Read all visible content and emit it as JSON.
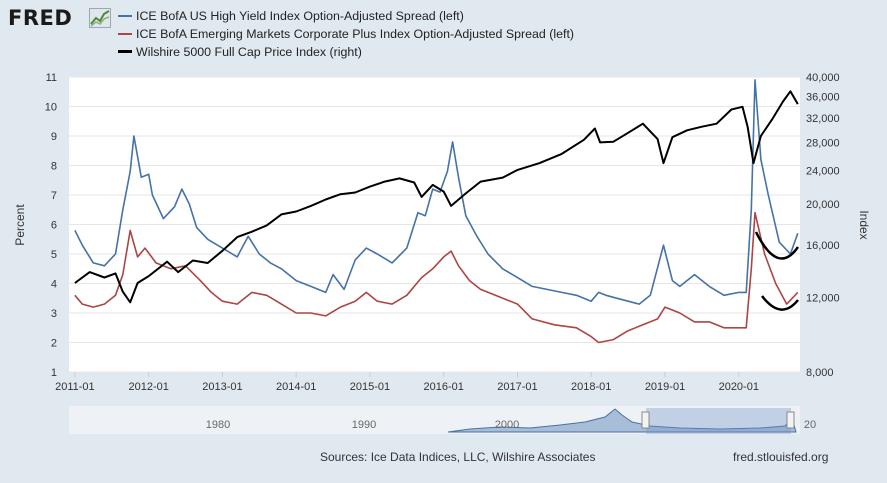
{
  "header": {
    "logo_text": "FRED",
    "logo_icon": "trend-chart-icon"
  },
  "legend": [
    {
      "label": "ICE BofA US High Yield Index Option-Adjusted Spread (left)",
      "color": "#4572a7"
    },
    {
      "label": "ICE BofA Emerging Markets Corporate Plus Index Option-Adjusted Spread (left)",
      "color": "#aa4643"
    },
    {
      "label": "Wilshire 5000 Full Cap Price Index (right)",
      "color": "#000000"
    }
  ],
  "footer": {
    "source": "Sources: Ice Data Indices, LLC, Wilshire Associates",
    "website": "fred.stlouisfed.org"
  },
  "chart_data": {
    "type": "line",
    "xlim": [
      2010.92,
      2020.83
    ],
    "x_ticks": [
      {
        "value": 2011.0,
        "label": "2011-01"
      },
      {
        "value": 2012.0,
        "label": "2012-01"
      },
      {
        "value": 2013.0,
        "label": "2013-01"
      },
      {
        "value": 2014.0,
        "label": "2014-01"
      },
      {
        "value": 2015.0,
        "label": "2015-01"
      },
      {
        "value": 2016.0,
        "label": "2016-01"
      },
      {
        "value": 2017.0,
        "label": "2017-01"
      },
      {
        "value": 2018.0,
        "label": "2018-01"
      },
      {
        "value": 2019.0,
        "label": "2019-01"
      },
      {
        "value": 2020.0,
        "label": "2020-01"
      }
    ],
    "left_axis": {
      "label": "Percent",
      "ylim": [
        1,
        11
      ],
      "ticks": [
        "1",
        "2",
        "3",
        "4",
        "5",
        "6",
        "7",
        "8",
        "9",
        "10",
        "11"
      ]
    },
    "right_axis": {
      "label": "Index",
      "scale": "log",
      "ylim": [
        8000,
        40000
      ],
      "ticks": [
        {
          "value": 8000,
          "label": "8,000"
        },
        {
          "value": 12000,
          "label": "12,000"
        },
        {
          "value": 16000,
          "label": "16,000"
        },
        {
          "value": 20000,
          "label": "20,000"
        },
        {
          "value": 24000,
          "label": "24,000"
        },
        {
          "value": 28000,
          "label": "28,000"
        },
        {
          "value": 32000,
          "label": "32,000"
        },
        {
          "value": 36000,
          "label": "36,000"
        },
        {
          "value": 40000,
          "label": "40,000"
        }
      ]
    },
    "series": [
      {
        "name": "ICE BofA US High Yield Index Option-Adjusted Spread",
        "axis": "left",
        "color": "#4572a7",
        "x": [
          2011.0,
          2011.1,
          2011.25,
          2011.4,
          2011.55,
          2011.65,
          2011.75,
          2011.8,
          2011.9,
          2012.0,
          2012.05,
          2012.2,
          2012.35,
          2012.45,
          2012.55,
          2012.65,
          2012.8,
          2013.0,
          2013.2,
          2013.35,
          2013.5,
          2013.65,
          2013.8,
          2014.0,
          2014.2,
          2014.4,
          2014.5,
          2014.65,
          2014.8,
          2014.95,
          2015.1,
          2015.3,
          2015.5,
          2015.65,
          2015.75,
          2015.85,
          2015.95,
          2016.05,
          2016.12,
          2016.2,
          2016.3,
          2016.45,
          2016.6,
          2016.8,
          2017.0,
          2017.2,
          2017.4,
          2017.6,
          2017.8,
          2018.0,
          2018.1,
          2018.2,
          2018.35,
          2018.5,
          2018.65,
          2018.8,
          2018.98,
          2019.1,
          2019.2,
          2019.4,
          2019.6,
          2019.8,
          2020.0,
          2020.1,
          2020.17,
          2020.22,
          2020.3,
          2020.4,
          2020.55,
          2020.7,
          2020.8
        ],
        "y": [
          5.8,
          5.3,
          4.7,
          4.6,
          5.0,
          6.5,
          7.8,
          9.0,
          7.6,
          7.7,
          7.0,
          6.2,
          6.6,
          7.2,
          6.7,
          5.9,
          5.5,
          5.2,
          4.9,
          5.6,
          5.0,
          4.7,
          4.5,
          4.1,
          3.9,
          3.7,
          4.3,
          3.8,
          4.8,
          5.2,
          5.0,
          4.7,
          5.2,
          6.4,
          6.3,
          7.2,
          7.1,
          7.8,
          8.8,
          7.6,
          6.3,
          5.6,
          5.0,
          4.5,
          4.2,
          3.9,
          3.8,
          3.7,
          3.6,
          3.4,
          3.7,
          3.6,
          3.5,
          3.4,
          3.3,
          3.6,
          5.3,
          4.1,
          3.9,
          4.3,
          3.9,
          3.6,
          3.7,
          3.7,
          6.5,
          10.9,
          8.2,
          7.0,
          5.4,
          5.0,
          5.7
        ]
      },
      {
        "name": "ICE BofA Emerging Markets Corporate Plus Index Option-Adjusted Spread",
        "axis": "left",
        "color": "#aa4643",
        "x": [
          2011.0,
          2011.1,
          2011.25,
          2011.4,
          2011.55,
          2011.65,
          2011.75,
          2011.85,
          2011.95,
          2012.1,
          2012.3,
          2012.5,
          2012.7,
          2012.85,
          2013.0,
          2013.2,
          2013.4,
          2013.6,
          2013.8,
          2014.0,
          2014.2,
          2014.4,
          2014.6,
          2014.8,
          2014.95,
          2015.1,
          2015.3,
          2015.5,
          2015.7,
          2015.85,
          2016.0,
          2016.1,
          2016.2,
          2016.35,
          2016.5,
          2016.7,
          2017.0,
          2017.2,
          2017.5,
          2017.8,
          2018.0,
          2018.1,
          2018.3,
          2018.5,
          2018.7,
          2018.9,
          2019.0,
          2019.2,
          2019.4,
          2019.6,
          2019.8,
          2020.0,
          2020.1,
          2020.17,
          2020.22,
          2020.35,
          2020.5,
          2020.65,
          2020.8
        ],
        "y": [
          3.6,
          3.3,
          3.2,
          3.3,
          3.6,
          4.3,
          5.8,
          4.9,
          5.2,
          4.7,
          4.5,
          4.6,
          4.1,
          3.7,
          3.4,
          3.3,
          3.7,
          3.6,
          3.3,
          3.0,
          3.0,
          2.9,
          3.2,
          3.4,
          3.7,
          3.4,
          3.3,
          3.6,
          4.2,
          4.5,
          4.9,
          5.1,
          4.6,
          4.1,
          3.8,
          3.6,
          3.3,
          2.8,
          2.6,
          2.5,
          2.2,
          2.0,
          2.1,
          2.4,
          2.6,
          2.8,
          3.2,
          3.0,
          2.7,
          2.7,
          2.5,
          2.5,
          2.5,
          4.5,
          6.4,
          5.0,
          4.0,
          3.3,
          3.7
        ]
      },
      {
        "name": "Wilshire 5000 Full Cap Price Index",
        "axis": "right",
        "color": "#000000",
        "x": [
          2011.0,
          2011.2,
          2011.4,
          2011.55,
          2011.65,
          2011.75,
          2011.85,
          2012.0,
          2012.25,
          2012.4,
          2012.6,
          2012.8,
          2013.0,
          2013.2,
          2013.4,
          2013.6,
          2013.8,
          2014.0,
          2014.2,
          2014.4,
          2014.6,
          2014.8,
          2015.0,
          2015.2,
          2015.4,
          2015.6,
          2015.7,
          2015.85,
          2016.0,
          2016.1,
          2016.3,
          2016.5,
          2016.8,
          2017.0,
          2017.3,
          2017.6,
          2017.9,
          2018.05,
          2018.12,
          2018.3,
          2018.5,
          2018.7,
          2018.9,
          2018.98,
          2019.1,
          2019.3,
          2019.5,
          2019.7,
          2019.9,
          2020.05,
          2020.12,
          2020.2,
          2020.3,
          2020.45,
          2020.6,
          2020.7,
          2020.8
        ],
        "y": [
          13000,
          13800,
          13400,
          13700,
          12400,
          11700,
          13000,
          13500,
          14600,
          13800,
          14700,
          14500,
          15500,
          16700,
          17200,
          17800,
          18900,
          19200,
          19800,
          20500,
          21100,
          21300,
          22000,
          22600,
          23000,
          22500,
          20800,
          22200,
          21400,
          19800,
          21200,
          22600,
          23100,
          24100,
          25000,
          26300,
          28400,
          30200,
          28000,
          28100,
          29500,
          31000,
          28500,
          25000,
          28800,
          29900,
          30500,
          31000,
          33500,
          34000,
          30500,
          25000,
          29000,
          31700,
          35000,
          37000,
          34500
        ]
      }
    ]
  }
}
